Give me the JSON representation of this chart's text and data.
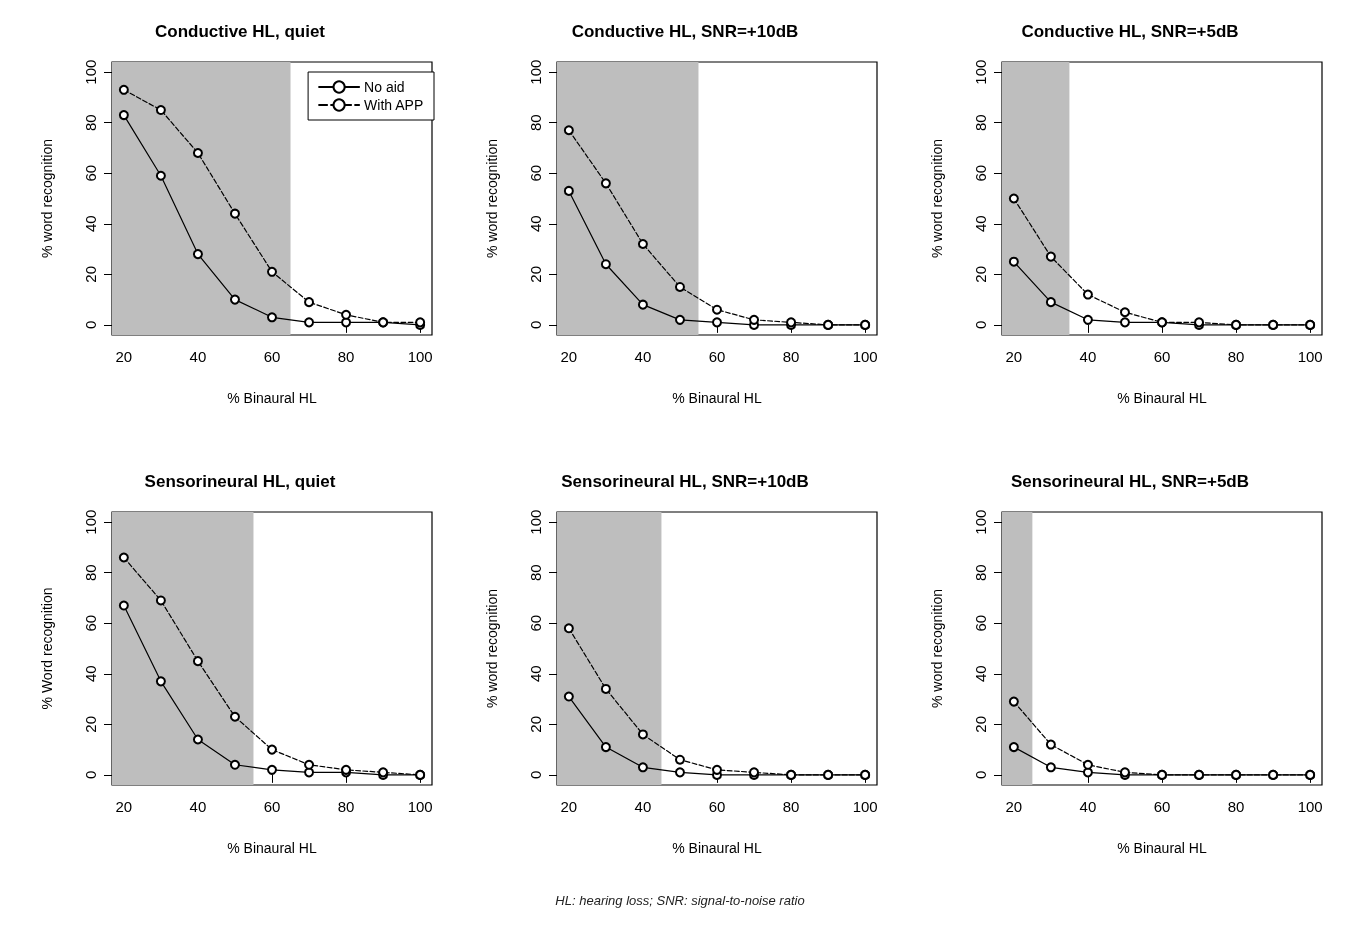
{
  "chart_data": [
    {
      "type": "line",
      "title": "Conductive HL, quiet",
      "xlabel": "% Binaural HL",
      "ylabel": "% word recognition",
      "x": [
        20,
        30,
        40,
        50,
        60,
        70,
        80,
        90,
        100
      ],
      "series": [
        {
          "name": "No aid",
          "color": "#000000",
          "line_style": "solid",
          "values": [
            83,
            59,
            28,
            10,
            3,
            1,
            1,
            1,
            0
          ]
        },
        {
          "name": "With APP",
          "color": "#000000",
          "line_style": "dashed",
          "values": [
            93,
            85,
            68,
            44,
            21,
            9,
            4,
            1,
            1
          ]
        }
      ],
      "xlim": [
        16.8,
        103.2
      ],
      "ylim": [
        -4,
        104
      ],
      "xticks": [
        20,
        40,
        60,
        80,
        100
      ],
      "yticks": [
        0,
        20,
        40,
        60,
        80,
        100
      ],
      "bands": [
        {
          "axis": "x",
          "from": 16.8,
          "to": 65,
          "color": "#bebebe"
        }
      ],
      "marker": "circle",
      "grid": false,
      "legend": "top right"
    },
    {
      "type": "line",
      "title": "Conductive HL, SNR=+10dB",
      "xlabel": "% Binaural HL",
      "ylabel": "% word recognition",
      "x": [
        20,
        30,
        40,
        50,
        60,
        70,
        80,
        90,
        100
      ],
      "series": [
        {
          "color": "#000000",
          "line_style": "solid",
          "values": [
            53,
            24,
            8,
            2,
            1,
            0,
            0,
            0,
            0
          ]
        },
        {
          "color": "#000000",
          "line_style": "dashed",
          "values": [
            77,
            56,
            32,
            15,
            6,
            2,
            1,
            0,
            0
          ]
        }
      ],
      "xlim": [
        16.8,
        103.2
      ],
      "ylim": [
        -4,
        104
      ],
      "xticks": [
        20,
        40,
        60,
        80,
        100
      ],
      "yticks": [
        0,
        20,
        40,
        60,
        80,
        100
      ],
      "bands": [
        {
          "axis": "x",
          "from": 16.8,
          "to": 55,
          "color": "#bebebe"
        }
      ],
      "marker": "circle",
      "grid": false
    },
    {
      "type": "line",
      "title": "Conductive HL, SNR=+5dB",
      "xlabel": "% Binaural HL",
      "ylabel": "% word recognition",
      "x": [
        20,
        30,
        40,
        50,
        60,
        70,
        80,
        90,
        100
      ],
      "series": [
        {
          "color": "#000000",
          "line_style": "solid",
          "values": [
            25,
            9,
            2,
            1,
            1,
            0,
            0,
            0,
            0
          ]
        },
        {
          "color": "#000000",
          "line_style": "dashed",
          "values": [
            50,
            27,
            12,
            5,
            1,
            1,
            0,
            0,
            0
          ]
        }
      ],
      "xlim": [
        16.8,
        103.2
      ],
      "ylim": [
        -4,
        104
      ],
      "xticks": [
        20,
        40,
        60,
        80,
        100
      ],
      "yticks": [
        0,
        20,
        40,
        60,
        80,
        100
      ],
      "bands": [
        {
          "axis": "x",
          "from": 16.8,
          "to": 35,
          "color": "#bebebe"
        }
      ],
      "marker": "circle",
      "grid": false
    },
    {
      "type": "line",
      "title": "Sensorineural HL, quiet",
      "xlabel": "% Binaural HL",
      "ylabel": "% Word recognition",
      "x": [
        20,
        30,
        40,
        50,
        60,
        70,
        80,
        90,
        100
      ],
      "series": [
        {
          "color": "#000000",
          "line_style": "solid",
          "values": [
            67,
            37,
            14,
            4,
            2,
            1,
            1,
            0,
            0
          ]
        },
        {
          "color": "#000000",
          "line_style": "dashed",
          "values": [
            86,
            69,
            45,
            23,
            10,
            4,
            2,
            1,
            0
          ]
        }
      ],
      "xlim": [
        16.8,
        103.2
      ],
      "ylim": [
        -4,
        104
      ],
      "xticks": [
        20,
        40,
        60,
        80,
        100
      ],
      "yticks": [
        0,
        20,
        40,
        60,
        80,
        100
      ],
      "bands": [
        {
          "axis": "x",
          "from": 16.8,
          "to": 55,
          "color": "#bebebe"
        }
      ],
      "marker": "circle",
      "grid": false
    },
    {
      "type": "line",
      "title": "Sensorineural HL, SNR=+10dB",
      "xlabel": "% Binaural HL",
      "ylabel": "% word recognition",
      "x": [
        20,
        30,
        40,
        50,
        60,
        70,
        80,
        90,
        100
      ],
      "series": [
        {
          "color": "#000000",
          "line_style": "solid",
          "values": [
            31,
            11,
            3,
            1,
            0,
            0,
            0,
            0,
            0
          ]
        },
        {
          "color": "#000000",
          "line_style": "dashed",
          "values": [
            58,
            34,
            16,
            6,
            2,
            1,
            0,
            0,
            0
          ]
        }
      ],
      "xlim": [
        16.8,
        103.2
      ],
      "ylim": [
        -4,
        104
      ],
      "xticks": [
        20,
        40,
        60,
        80,
        100
      ],
      "yticks": [
        0,
        20,
        40,
        60,
        80,
        100
      ],
      "bands": [
        {
          "axis": "x",
          "from": 16.8,
          "to": 45,
          "color": "#bebebe"
        }
      ],
      "marker": "circle",
      "grid": false
    },
    {
      "type": "line",
      "title": "Sensorineural HL, SNR=+5dB",
      "xlabel": "% Binaural HL",
      "ylabel": "% word recognition",
      "x": [
        20,
        30,
        40,
        50,
        60,
        70,
        80,
        90,
        100
      ],
      "series": [
        {
          "color": "#000000",
          "line_style": "solid",
          "values": [
            11,
            3,
            1,
            0,
            0,
            0,
            0,
            0,
            0
          ]
        },
        {
          "color": "#000000",
          "line_style": "dashed",
          "values": [
            29,
            12,
            4,
            1,
            0,
            0,
            0,
            0,
            0
          ]
        }
      ],
      "xlim": [
        16.8,
        103.2
      ],
      "ylim": [
        -4,
        104
      ],
      "xticks": [
        20,
        40,
        60,
        80,
        100
      ],
      "yticks": [
        0,
        20,
        40,
        60,
        80,
        100
      ],
      "bands": [
        {
          "axis": "x",
          "from": 16.8,
          "to": 25,
          "color": "#bebebe"
        }
      ],
      "marker": "circle",
      "grid": false,
      "annotations": [
        "HL: hearing loss; SNR: signal-to-noise ratio"
      ]
    }
  ]
}
